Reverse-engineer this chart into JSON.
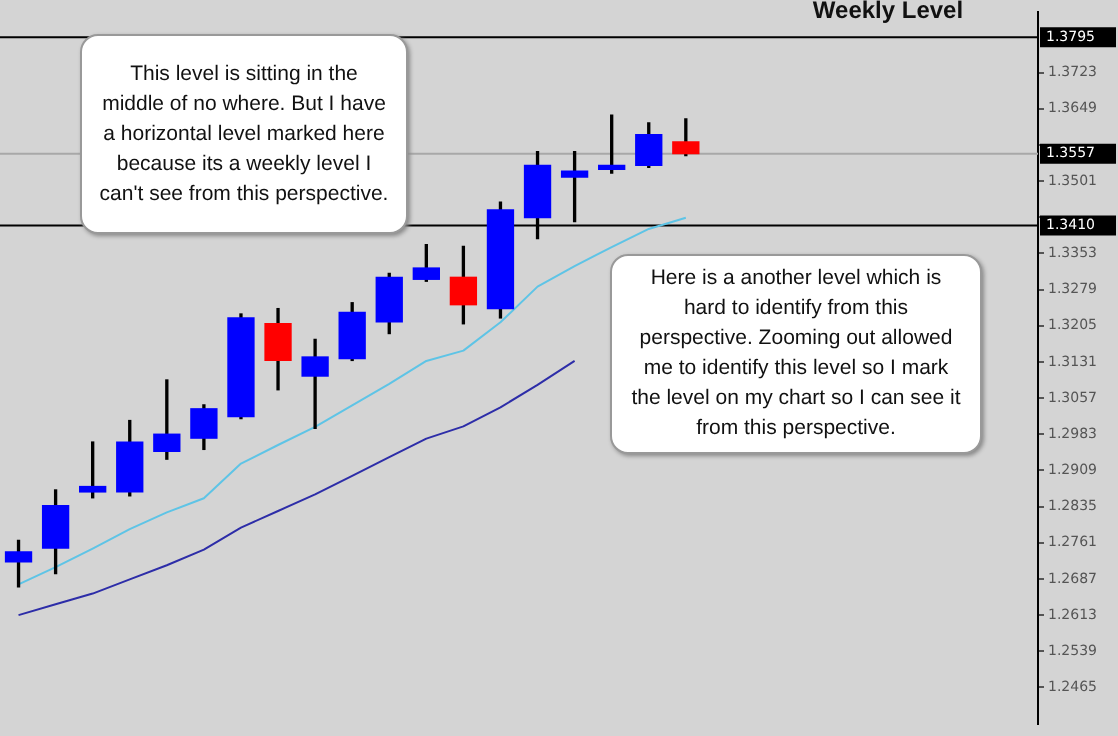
{
  "chart_data": {
    "type": "candlestick",
    "title": "Weekly Level",
    "categories": [
      null,
      null,
      null,
      null,
      null,
      null,
      null,
      null,
      null,
      null,
      null,
      null,
      null,
      null,
      null,
      null,
      null,
      null,
      null,
      null,
      null,
      null,
      null,
      null,
      null,
      null,
      null,
      null
    ],
    "ohlc": [
      [
        1.2722,
        1.2766,
        1.2671,
        1.2742
      ],
      [
        1.275,
        1.2869,
        1.2698,
        1.2837
      ],
      [
        1.2865,
        1.2967,
        1.2853,
        1.2876
      ],
      [
        1.2865,
        1.3011,
        1.2857,
        1.2967
      ],
      [
        1.2948,
        1.3094,
        1.2932,
        1.2983
      ],
      [
        1.2975,
        1.3043,
        1.2952,
        1.3035
      ],
      [
        1.3019,
        1.3229,
        1.3015,
        1.3221
      ],
      [
        1.3209,
        1.324,
        1.3074,
        1.3134
      ],
      [
        1.3102,
        1.3177,
        1.2995,
        1.3141
      ],
      [
        1.3138,
        1.3252,
        1.3134,
        1.3232
      ],
      [
        1.3213,
        1.3312,
        1.3189,
        1.3304
      ],
      [
        1.33,
        1.3371,
        1.3296,
        1.3323
      ],
      [
        1.3304,
        1.3367,
        1.3209,
        1.3248
      ],
      [
        1.324,
        1.3458,
        1.3221,
        1.3442
      ],
      [
        1.3426,
        1.3561,
        1.3383,
        1.3533
      ],
      [
        1.3509,
        1.3561,
        1.3418,
        1.3521
      ],
      [
        1.3525,
        1.3636,
        1.3517,
        1.3533
      ],
      [
        1.3533,
        1.362,
        1.3529,
        1.3596
      ],
      [
        1.3581,
        1.3628,
        1.3553,
        1.3557
      ],
      null,
      null,
      null,
      null,
      null,
      null,
      null,
      null,
      null
    ],
    "colors": [
      "#0000ff",
      "#0000ff",
      "#0000ff",
      "#0000ff",
      "#0000ff",
      "#0000ff",
      "#0000ff",
      "#ff0000",
      "#0000ff",
      "#0000ff",
      "#0000ff",
      "#0000ff",
      "#ff0000",
      "#0000ff",
      "#0000ff",
      "#0000ff",
      "#0000ff",
      "#0000ff",
      "#ff0000",
      null,
      null,
      null,
      null,
      null,
      null,
      null,
      null,
      null
    ],
    "series": [
      {
        "type": "line",
        "color": "#5ec4e6",
        "values": [
          1.2676,
          1.2711,
          1.2749,
          1.2789,
          1.2823,
          1.2852,
          1.2923,
          1.2961,
          1.2998,
          1.3042,
          1.3086,
          1.3133,
          1.3154,
          1.3212,
          1.3285,
          1.3327,
          1.3366,
          1.3403,
          1.3426,
          null,
          null,
          null,
          null,
          null,
          null,
          null,
          null,
          null
        ]
      },
      {
        "type": "line",
        "color": "#2d2da8",
        "values": [
          1.2613,
          1.2635,
          1.2657,
          1.2686,
          1.2715,
          1.2747,
          1.2792,
          1.2826,
          1.286,
          1.2898,
          1.2936,
          1.2974,
          1.2999,
          1.3038,
          1.3084,
          1.3133,
          null,
          null,
          null,
          null,
          null,
          null,
          null,
          null,
          null,
          null,
          null,
          null
        ]
      }
    ],
    "ylim": [
      1.2391,
      1.3846
    ],
    "yticks": [
      1.3723,
      1.3649,
      {
        "value": 1.3575,
        "label": null
      },
      1.3501,
      {
        "value": 1.3427,
        "label": null
      },
      1.3353,
      1.3279,
      1.3205,
      1.3131,
      1.3057,
      1.2983,
      1.2909,
      1.2835,
      1.2761,
      1.2687,
      1.2613,
      1.2539,
      1.2465
    ],
    "tick_labels": "y",
    "ref_lines": [
      {
        "axis": "y",
        "value": 1.3795,
        "label": "1.3795",
        "color": "#000000"
      },
      {
        "axis": "y",
        "value": 1.3557,
        "label": "1.3557",
        "color": "#a8a8a8"
      },
      {
        "axis": "y",
        "value": 1.341,
        "label": "1.3410",
        "color": "#000000"
      }
    ],
    "annotations": [
      "This level is sitting in the middle of no where. But I have a horizontal level marked here because its a weekly level I can't see from this perspective.",
      "Here is a another level which is hard to identify from this perspective. Zooming out allowed me to identify this level so I mark the level on my chart so I can see it from this perspective."
    ]
  }
}
